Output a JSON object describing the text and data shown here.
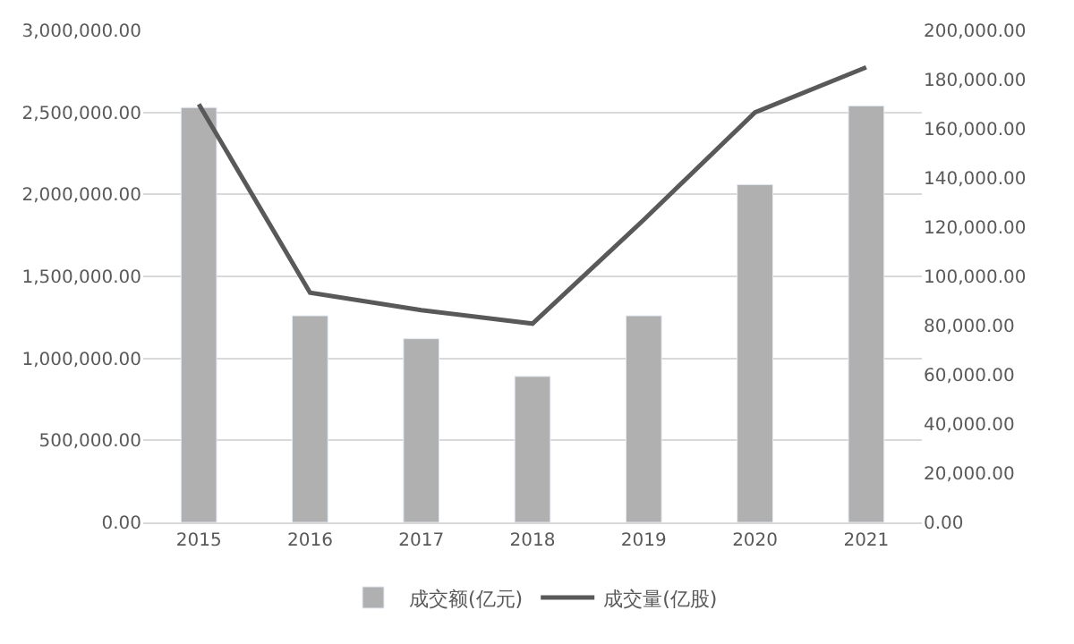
{
  "chart_data": {
    "type": "bar",
    "categories": [
      "2015",
      "2016",
      "2017",
      "2018",
      "2019",
      "2020",
      "2021"
    ],
    "series": [
      {
        "name": "成交额(亿元)",
        "color": "#b0b0b0",
        "values": [
          2530000,
          1260000,
          1120000,
          890000,
          1260000,
          2060000,
          2540000
        ]
      },
      {
        "name": "成交量(亿股)",
        "type": "line",
        "axis": "y2",
        "color": "#595959",
        "line_style": "solid",
        "values": [
          170000,
          93400,
          86300,
          80800,
          123000,
          166700,
          185000
        ]
      }
    ],
    "ylim": [
      0,
      3000000
    ],
    "yticks": [
      {
        "value": 0,
        "label": "0.00"
      },
      {
        "value": 500000,
        "label": "500,000.00"
      },
      {
        "value": 1000000,
        "label": "1,000,000.00"
      },
      {
        "value": 1500000,
        "label": "1,500,000.00"
      },
      {
        "value": 2000000,
        "label": "2,000,000.00"
      },
      {
        "value": 2500000,
        "label": "2,500,000.00"
      },
      {
        "value": 3000000,
        "label": "3,000,000.00"
      }
    ],
    "y2lim": [
      0,
      200000
    ],
    "y2ticks": [
      {
        "value": 0,
        "label": "0.00"
      },
      {
        "value": 20000,
        "label": "20,000.00"
      },
      {
        "value": 40000,
        "label": "40,000.00"
      },
      {
        "value": 60000,
        "label": "60,000.00"
      },
      {
        "value": 80000,
        "label": "80,000.00"
      },
      {
        "value": 100000,
        "label": "100,000.00"
      },
      {
        "value": 120000,
        "label": "120,000.00"
      },
      {
        "value": 140000,
        "label": "140,000.00"
      },
      {
        "value": 160000,
        "label": "160,000.00"
      },
      {
        "value": 180000,
        "label": "180,000.00"
      },
      {
        "value": 200000,
        "label": "200,000.00"
      }
    ],
    "grid": "y",
    "legend": "bottom",
    "marker": "none"
  }
}
